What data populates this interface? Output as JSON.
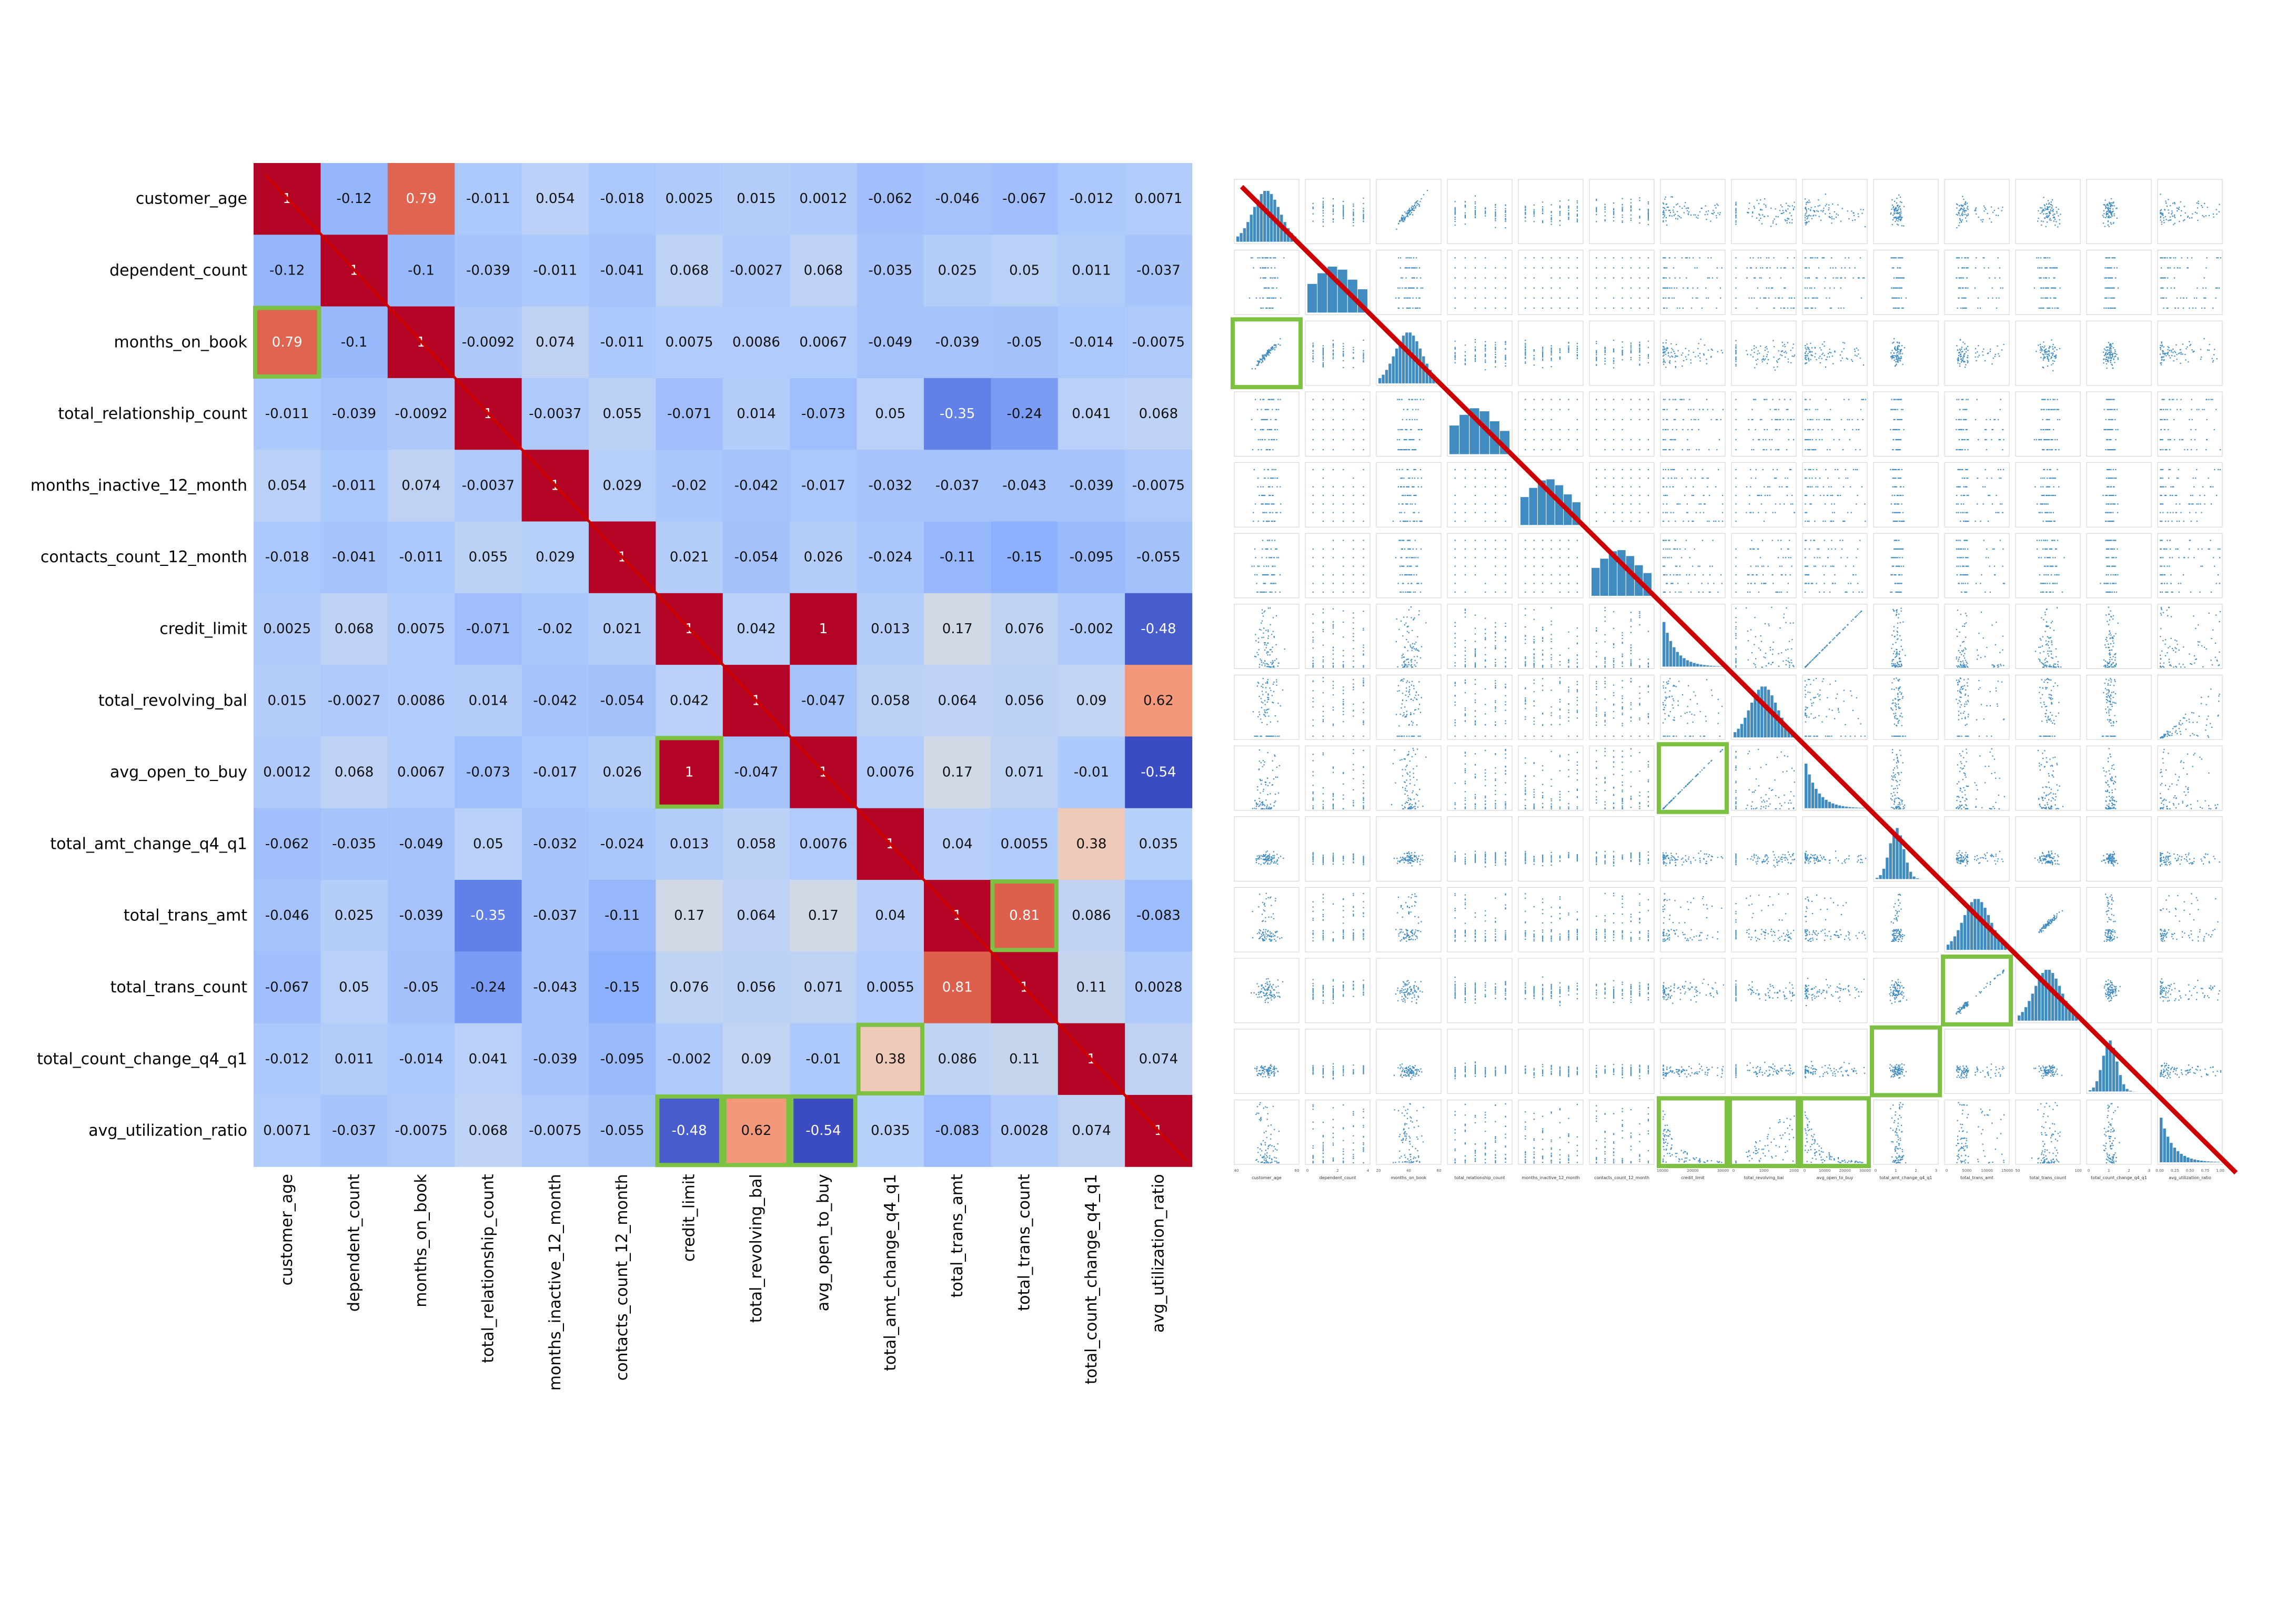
{
  "chart_data": [
    {
      "type": "heatmap",
      "title": "",
      "variables": [
        "customer_age",
        "dependent_count",
        "months_on_book",
        "total_relationship_count",
        "months_inactive_12_month",
        "contacts_count_12_month",
        "credit_limit",
        "total_revolving_bal",
        "avg_open_to_buy",
        "total_amt_change_q4_q1",
        "total_trans_amt",
        "total_trans_count",
        "total_count_change_q4_q1",
        "avg_utilization_ratio"
      ],
      "matrix": [
        [
          "1",
          "-0.12",
          "0.79",
          "-0.011",
          "0.054",
          "-0.018",
          "0.0025",
          "0.015",
          "0.0012",
          "-0.062",
          "-0.046",
          "-0.067",
          "-0.012",
          "0.0071"
        ],
        [
          "-0.12",
          "1",
          "-0.1",
          "-0.039",
          "-0.011",
          "-0.041",
          "0.068",
          "-0.0027",
          "0.068",
          "-0.035",
          "0.025",
          "0.05",
          "0.011",
          "-0.037"
        ],
        [
          "0.79",
          "-0.1",
          "1",
          "-0.0092",
          "0.074",
          "-0.011",
          "0.0075",
          "0.0086",
          "0.0067",
          "-0.049",
          "-0.039",
          "-0.05",
          "-0.014",
          "-0.0075"
        ],
        [
          "-0.011",
          "-0.039",
          "-0.0092",
          "1",
          "-0.0037",
          "0.055",
          "-0.071",
          "0.014",
          "-0.073",
          "0.05",
          "-0.35",
          "-0.24",
          "0.041",
          "0.068"
        ],
        [
          "0.054",
          "-0.011",
          "0.074",
          "-0.0037",
          "1",
          "0.029",
          "-0.02",
          "-0.042",
          "-0.017",
          "-0.032",
          "-0.037",
          "-0.043",
          "-0.039",
          "-0.0075"
        ],
        [
          "-0.018",
          "-0.041",
          "-0.011",
          "0.055",
          "0.029",
          "1",
          "0.021",
          "-0.054",
          "0.026",
          "-0.024",
          "-0.11",
          "-0.15",
          "-0.095",
          "-0.055"
        ],
        [
          "0.0025",
          "0.068",
          "0.0075",
          "-0.071",
          "-0.02",
          "0.021",
          "1",
          "0.042",
          "1",
          "0.013",
          "0.17",
          "0.076",
          "-0.002",
          "-0.48"
        ],
        [
          "0.015",
          "-0.0027",
          "0.0086",
          "0.014",
          "-0.042",
          "-0.054",
          "0.042",
          "1",
          "-0.047",
          "0.058",
          "0.064",
          "0.056",
          "0.09",
          "0.62"
        ],
        [
          "0.0012",
          "0.068",
          "0.0067",
          "-0.073",
          "-0.017",
          "0.026",
          "1",
          "-0.047",
          "1",
          "0.0076",
          "0.17",
          "0.071",
          "-0.01",
          "-0.54"
        ],
        [
          "-0.062",
          "-0.035",
          "-0.049",
          "0.05",
          "-0.032",
          "-0.024",
          "0.013",
          "0.058",
          "0.0076",
          "1",
          "0.04",
          "0.0055",
          "0.38",
          "0.035"
        ],
        [
          "-0.046",
          "0.025",
          "-0.039",
          "-0.35",
          "-0.037",
          "-0.11",
          "0.17",
          "0.064",
          "0.17",
          "0.04",
          "1",
          "0.81",
          "0.086",
          "-0.083"
        ],
        [
          "-0.067",
          "0.05",
          "-0.05",
          "-0.24",
          "-0.043",
          "-0.15",
          "0.076",
          "0.056",
          "0.071",
          "0.0055",
          "0.81",
          "1",
          "0.11",
          "0.0028"
        ],
        [
          "-0.012",
          "0.011",
          "-0.014",
          "0.041",
          "-0.039",
          "-0.095",
          "-0.002",
          "0.09",
          "-0.01",
          "0.38",
          "0.086",
          "0.11",
          "1",
          "0.074"
        ],
        [
          "0.0071",
          "-0.037",
          "-0.0075",
          "0.068",
          "-0.0075",
          "-0.055",
          "-0.48",
          "0.62",
          "-0.54",
          "0.035",
          "-0.083",
          "0.0028",
          "0.074",
          "1"
        ]
      ],
      "colormap": "coolwarm",
      "value_range": [
        -0.54,
        1
      ],
      "highlighted_cells": [
        [
          2,
          0
        ],
        [
          8,
          6
        ],
        [
          10,
          11
        ],
        [
          12,
          9
        ],
        [
          13,
          6
        ],
        [
          13,
          7
        ],
        [
          13,
          8
        ]
      ],
      "highlight_color": "#7dc142",
      "diagonal_line_color": "#cc0000"
    },
    {
      "type": "scatter",
      "subtype": "pairplot",
      "title": "",
      "variables": [
        "customer_age",
        "dependent_count",
        "months_on_book",
        "total_relationship_count",
        "months_inactive_12_month",
        "contacts_count_12_month",
        "credit_limit",
        "total_revolving_bal",
        "avg_open_to_buy",
        "total_amt_change_q4_q1",
        "total_trans_amt",
        "total_trans_count",
        "total_count_change_q4_q1",
        "avg_utilization_ratio"
      ],
      "x_tick_labels": [
        [
          "40",
          "60"
        ],
        [
          "0",
          "2",
          "4"
        ],
        [
          "20",
          "40",
          "60"
        ],
        [],
        [],
        [],
        [
          "10000",
          "20000",
          "30000"
        ],
        [
          "0",
          "1000",
          "2000"
        ],
        [
          "0",
          "10000",
          "20000",
          "30000"
        ],
        [
          "0",
          "1",
          "2",
          "3"
        ],
        [
          "0",
          "5000",
          "10000",
          "15000"
        ],
        [
          "50",
          "100"
        ],
        [
          "0",
          "1",
          "2",
          "3"
        ],
        [
          "0.00",
          "0.25",
          "0.50",
          "0.75",
          "1.00"
        ]
      ],
      "marker_color": "#1f77b4",
      "highlighted_panels": [
        [
          2,
          0
        ],
        [
          8,
          6
        ],
        [
          11,
          10
        ],
        [
          12,
          9
        ],
        [
          13,
          6
        ],
        [
          13,
          7
        ],
        [
          13,
          8
        ]
      ],
      "highlight_color": "#7dc142",
      "diagonal_line_color": "#cc0000"
    }
  ]
}
